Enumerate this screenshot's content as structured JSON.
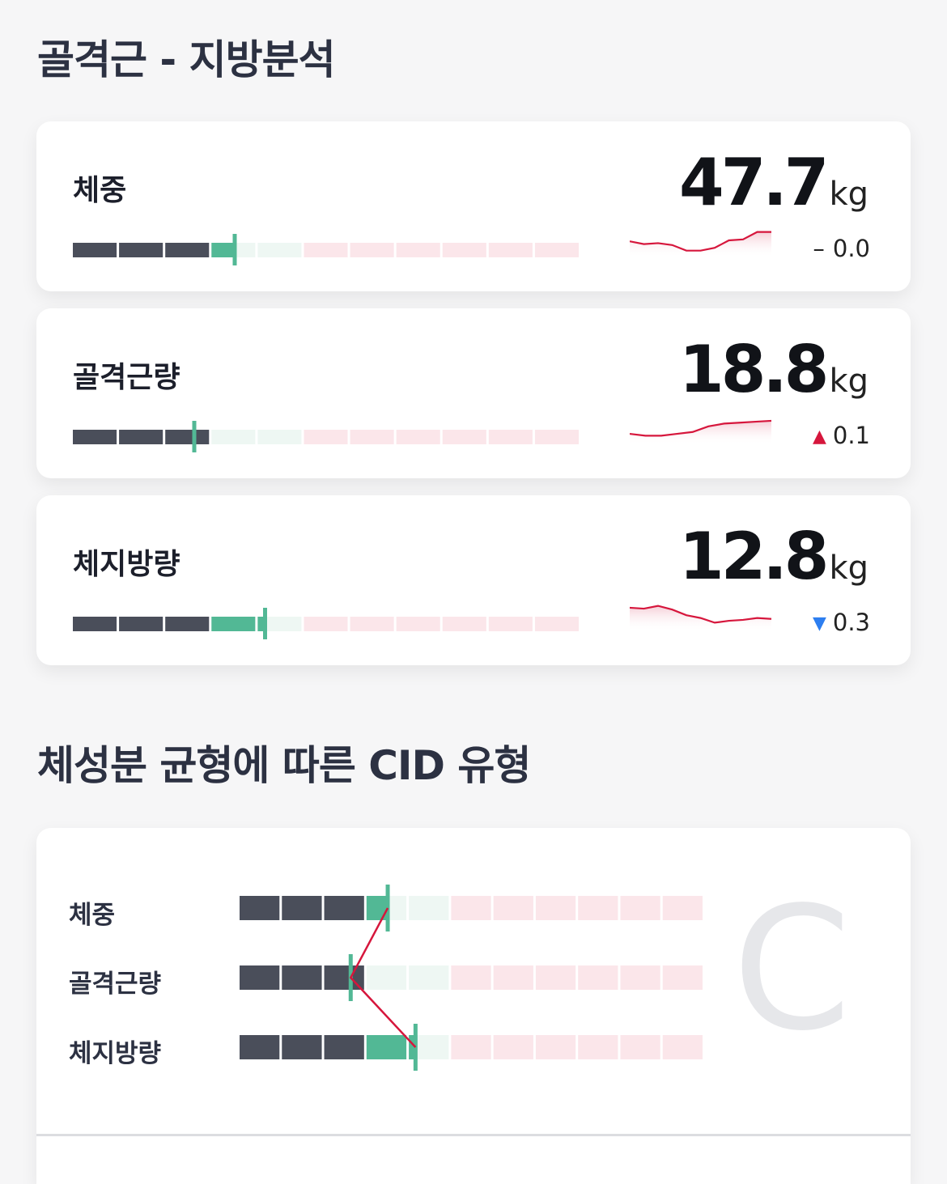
{
  "sections": {
    "fat_title": "골격근 - 지방분석",
    "cid_title": "체성분 균형에 따른 CID 유형"
  },
  "metrics": [
    {
      "label": "체중",
      "value": "47.7",
      "unit": "kg",
      "change": "0.0",
      "trend": "flat",
      "trend_symbol": "–",
      "gauge_level": 0.32,
      "history": [
        12,
        9,
        10,
        8,
        2,
        2,
        5,
        13,
        14,
        22,
        22
      ]
    },
    {
      "label": "골격근량",
      "value": "18.8",
      "unit": "kg",
      "change": "0.1",
      "trend": "up",
      "trend_symbol": "▲",
      "gauge_level": 0.24,
      "history": [
        6,
        4,
        4,
        6,
        8,
        14,
        17,
        18,
        19,
        20
      ]
    },
    {
      "label": "체지방량",
      "value": "12.8",
      "unit": "kg",
      "change": "0.3",
      "trend": "down",
      "trend_symbol": "▼",
      "gauge_level": 0.38,
      "history": [
        20,
        19,
        22,
        18,
        12,
        9,
        4,
        6,
        7,
        9,
        8
      ]
    }
  ],
  "cid": {
    "type_letter": "C",
    "rows": [
      {
        "label": "체중",
        "level": 0.32
      },
      {
        "label": "골격근량",
        "level": 0.24
      },
      {
        "label": "체지방량",
        "level": 0.38
      }
    ]
  },
  "colors": {
    "dark": "#4a4e5a",
    "green": "#52b895",
    "green_light": "#eef7f3",
    "pink": "#fbe6ea",
    "line_red": "#d6163c"
  }
}
